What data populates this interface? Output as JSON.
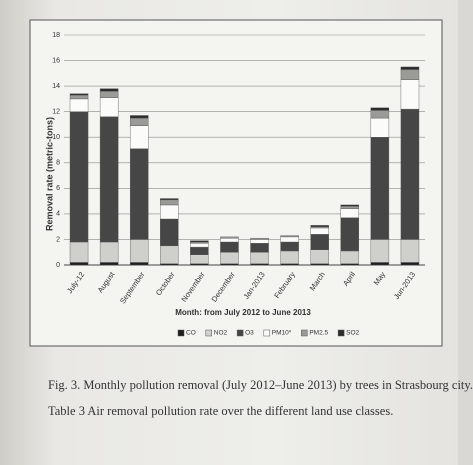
{
  "chart_data": {
    "type": "stacked_bar",
    "y_label": "Removal rate (metric-tons)",
    "x_label": "Month: from July 2012 to June 2013",
    "categories": [
      "July-12",
      "August",
      "September",
      "October",
      "November",
      "December",
      "Jan-2013",
      "February",
      "March",
      "April",
      "May",
      "Jun-2013"
    ],
    "series": [
      {
        "name": "CO",
        "color": "#1e1e1e",
        "values": [
          0.2,
          0.2,
          0.2,
          0.1,
          0.1,
          0.1,
          0.1,
          0.1,
          0.1,
          0.1,
          0.2,
          0.2
        ]
      },
      {
        "name": "NO2",
        "color": "#cfcfcb",
        "values": [
          1.6,
          1.6,
          1.8,
          1.4,
          0.7,
          0.9,
          0.9,
          1.0,
          1.1,
          1.0,
          1.8,
          1.8
        ]
      },
      {
        "name": "O3",
        "color": "#464646",
        "values": [
          10.2,
          9.8,
          7.1,
          2.1,
          0.6,
          0.8,
          0.7,
          0.7,
          1.2,
          2.6,
          8.0,
          10.2
        ]
      },
      {
        "name": "PM10*",
        "color": "#fbfbf9",
        "values": [
          1.0,
          1.5,
          1.8,
          1.1,
          0.3,
          0.3,
          0.3,
          0.4,
          0.5,
          0.7,
          1.5,
          2.3
        ]
      },
      {
        "name": "PM2.5",
        "color": "#9a9a96",
        "values": [
          0.3,
          0.5,
          0.6,
          0.4,
          0.1,
          0.1,
          0.1,
          0.1,
          0.1,
          0.2,
          0.6,
          0.8
        ]
      },
      {
        "name": "SO2",
        "color": "#2c2c2c",
        "values": [
          0.1,
          0.2,
          0.2,
          0.1,
          0.1,
          0,
          0,
          0,
          0.1,
          0.1,
          0.2,
          0.2
        ]
      }
    ],
    "ylim": [
      0,
      18
    ],
    "yticks": [
      0,
      2,
      4,
      6,
      8,
      10,
      12,
      14,
      16,
      18
    ],
    "grid": true,
    "legend": "bottom"
  },
  "caption": "Fig. 3. Monthly pollution removal (July 2012–June 2013) by trees in Strasbourg city.",
  "table_caption": "Table 3 Air removal pollution rate over the different land use classes."
}
